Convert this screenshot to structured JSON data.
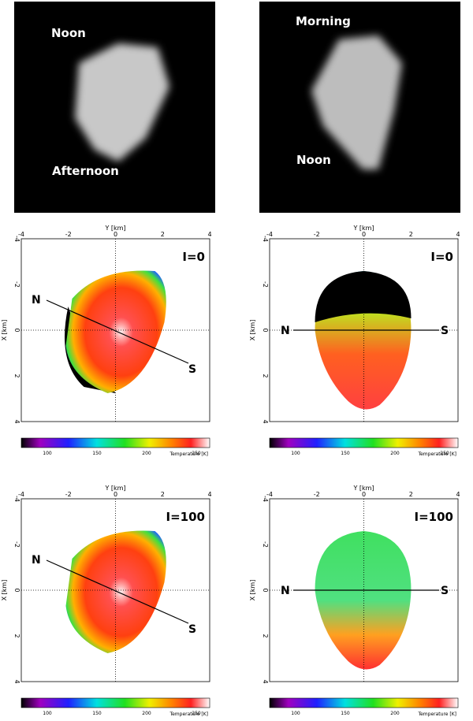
{
  "photos": [
    {
      "labels": [
        "Noon",
        "Afternoon"
      ]
    },
    {
      "labels": [
        "Morning",
        "Noon"
      ]
    }
  ],
  "panels": [
    {
      "label": "I=0",
      "north": "N",
      "south": "S",
      "x_axis": "Y  [km]",
      "y_axis": "X  [km]",
      "x_ticks": [
        "-4",
        "-2",
        "0",
        "2",
        "4"
      ],
      "y_ticks": [
        "-4",
        "-2",
        "0",
        "2",
        "4"
      ],
      "colorbar_ticks": [
        "100",
        "150",
        "200",
        "250"
      ],
      "colorbar_title": "Temperature [K]"
    },
    {
      "label": "I=0",
      "north": "N",
      "south": "S",
      "x_axis": "Y  [km]",
      "y_axis": "X  [km]",
      "x_ticks": [
        "-4",
        "-2",
        "0",
        "2",
        "4"
      ],
      "y_ticks": [
        "-4",
        "-2",
        "0",
        "2",
        "4"
      ],
      "colorbar_ticks": [
        "100",
        "150",
        "200",
        "250"
      ],
      "colorbar_title": "Temperature [K]"
    },
    {
      "label": "I=100",
      "north": "N",
      "south": "S",
      "x_axis": "Y  [km]",
      "y_axis": "X  [km]",
      "x_ticks": [
        "-4",
        "-2",
        "0",
        "2",
        "4"
      ],
      "y_ticks": [
        "-4",
        "-2",
        "0",
        "2",
        "4"
      ],
      "colorbar_ticks": [
        "100",
        "150",
        "200",
        "250"
      ],
      "colorbar_title": "Temperature [K]"
    },
    {
      "label": "I=100",
      "north": "N",
      "south": "S",
      "x_axis": "Y  [km]",
      "y_axis": "X  [km]",
      "x_ticks": [
        "-4",
        "-2",
        "0",
        "2",
        "4"
      ],
      "y_ticks": [
        "-4",
        "-2",
        "0",
        "2",
        "4"
      ],
      "colorbar_ticks": [
        "100",
        "150",
        "200"
      ],
      "colorbar_title": "Temperature [K]"
    }
  ]
}
